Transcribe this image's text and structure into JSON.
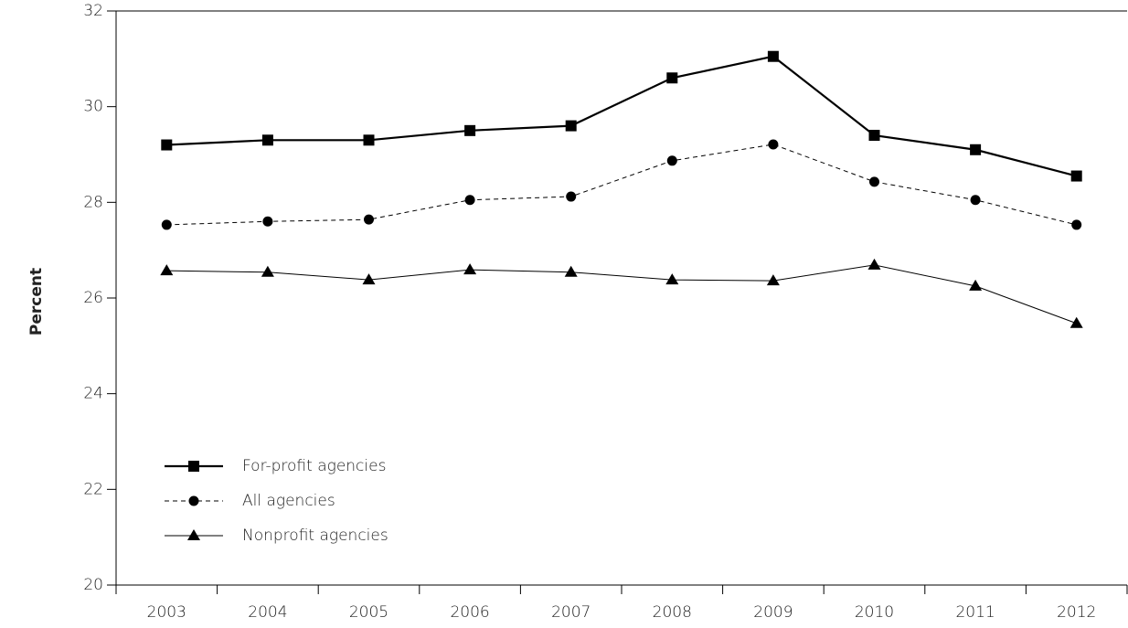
{
  "chart_data": {
    "type": "line",
    "y_label": "Percent",
    "categories": [
      "2003",
      "2004",
      "2005",
      "2006",
      "2007",
      "2008",
      "2009",
      "2010",
      "2011",
      "2012"
    ],
    "series": [
      {
        "name": "For-profit agencies",
        "color": "#000000",
        "marker": "square",
        "dash": "solid",
        "width": 2.2,
        "values": [
          29.2,
          29.3,
          29.3,
          29.5,
          29.6,
          30.6,
          31.05,
          29.4,
          29.1,
          28.55
        ]
      },
      {
        "name": "All agencies",
        "color": "#000000",
        "marker": "circle",
        "dash": "dashed",
        "width": 1,
        "values": [
          27.53,
          27.6,
          27.64,
          28.05,
          28.12,
          28.87,
          29.21,
          28.43,
          28.05,
          27.53
        ]
      },
      {
        "name": "Nonprofit agencies",
        "color": "#000000",
        "marker": "triangle",
        "dash": "solid",
        "width": 1,
        "values": [
          26.57,
          26.54,
          26.38,
          26.59,
          26.54,
          26.38,
          26.36,
          26.69,
          26.25,
          25.47
        ]
      }
    ],
    "ylim": [
      20,
      32
    ],
    "yticks": [
      20,
      22,
      24,
      26,
      28,
      30,
      32
    ],
    "grid": false,
    "legend": "lower left"
  }
}
